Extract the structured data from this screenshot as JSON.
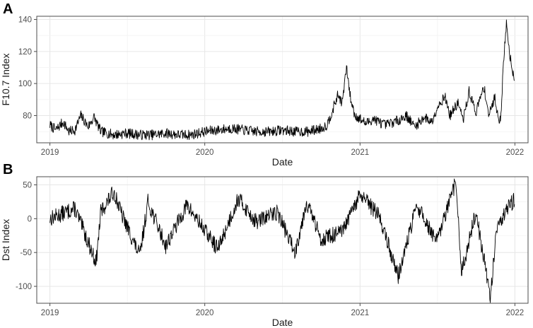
{
  "chart_data": [
    {
      "panel": "A",
      "type": "line",
      "xlabel": "Date",
      "ylabel": "F10.7 Index",
      "x_ticks": [
        "2019",
        "2020",
        "2021",
        "2022"
      ],
      "y_ticks": [
        80,
        100,
        120,
        140
      ],
      "xlim": [
        "2018-12-01",
        "2022-02-01"
      ],
      "ylim": [
        63,
        142
      ],
      "grid": true,
      "series": [
        {
          "x": [
            "2019-01-01",
            "2019-01-15",
            "2019-02-01",
            "2019-02-15",
            "2019-03-01",
            "2019-03-15",
            "2019-04-01",
            "2019-04-15",
            "2019-05-01",
            "2019-06-01",
            "2019-07-01",
            "2019-08-01",
            "2019-09-01",
            "2019-10-01",
            "2019-11-01",
            "2019-12-01",
            "2020-01-01",
            "2020-02-01",
            "2020-03-01",
            "2020-04-01",
            "2020-05-01",
            "2020-06-01",
            "2020-07-01",
            "2020-08-01",
            "2020-09-01",
            "2020-10-01",
            "2020-10-15",
            "2020-11-01",
            "2020-11-10",
            "2020-11-20",
            "2020-11-30",
            "2020-12-10",
            "2020-12-20",
            "2021-01-01",
            "2021-01-15",
            "2021-02-01",
            "2021-03-01",
            "2021-04-01",
            "2021-04-20",
            "2021-05-10",
            "2021-06-01",
            "2021-06-20",
            "2021-07-01",
            "2021-07-20",
            "2021-08-01",
            "2021-08-20",
            "2021-09-01",
            "2021-09-15",
            "2021-10-01",
            "2021-10-20",
            "2021-11-01",
            "2021-11-15",
            "2021-11-20",
            "2021-11-28",
            "2021-12-05",
            "2021-12-12",
            "2021-12-20",
            "2021-12-31"
          ],
          "values": [
            74,
            71,
            76,
            70,
            71,
            80,
            73,
            79,
            70,
            68,
            69,
            68,
            68,
            69,
            68,
            68,
            70,
            71,
            72,
            71,
            70,
            70,
            71,
            70,
            70,
            72,
            74,
            86,
            93,
            88,
            110,
            90,
            80,
            78,
            75,
            78,
            74,
            77,
            80,
            73,
            79,
            76,
            85,
            92,
            80,
            88,
            77,
            95,
            82,
            98,
            80,
            92,
            82,
            76,
            112,
            138,
            118,
            102
          ]
        }
      ]
    },
    {
      "panel": "B",
      "type": "line",
      "xlabel": "Date",
      "ylabel": "Dst Index",
      "x_ticks": [
        "2019",
        "2020",
        "2021",
        "2022"
      ],
      "y_ticks": [
        50,
        0,
        -50,
        -100
      ],
      "xlim": [
        "2018-12-01",
        "2022-02-01"
      ],
      "ylim": [
        -125,
        62
      ],
      "grid": true,
      "series": [
        {
          "x": [
            "2019-01-01",
            "2019-03-01",
            "2019-04-20",
            "2019-05-01",
            "2019-06-01",
            "2019-06-20",
            "2019-08-01",
            "2019-08-20",
            "2019-10-01",
            "2019-11-20",
            "2020-02-01",
            "2020-03-20",
            "2020-05-01",
            "2020-06-20",
            "2020-08-01",
            "2020-08-28",
            "2020-10-01",
            "2020-11-20",
            "2021-01-01",
            "2021-02-15",
            "2021-04-01",
            "2021-05-15",
            "2021-07-01",
            "2021-08-15",
            "2021-08-28",
            "2021-10-01",
            "2021-11-04",
            "2021-11-20",
            "2021-12-31"
          ],
          "values": [
            0,
            15,
            -65,
            10,
            40,
            5,
            -55,
            25,
            -40,
            20,
            -45,
            30,
            -5,
            10,
            -50,
            25,
            -30,
            -20,
            35,
            5,
            -85,
            20,
            -35,
            55,
            -80,
            10,
            -115,
            -10,
            30
          ]
        }
      ]
    }
  ]
}
